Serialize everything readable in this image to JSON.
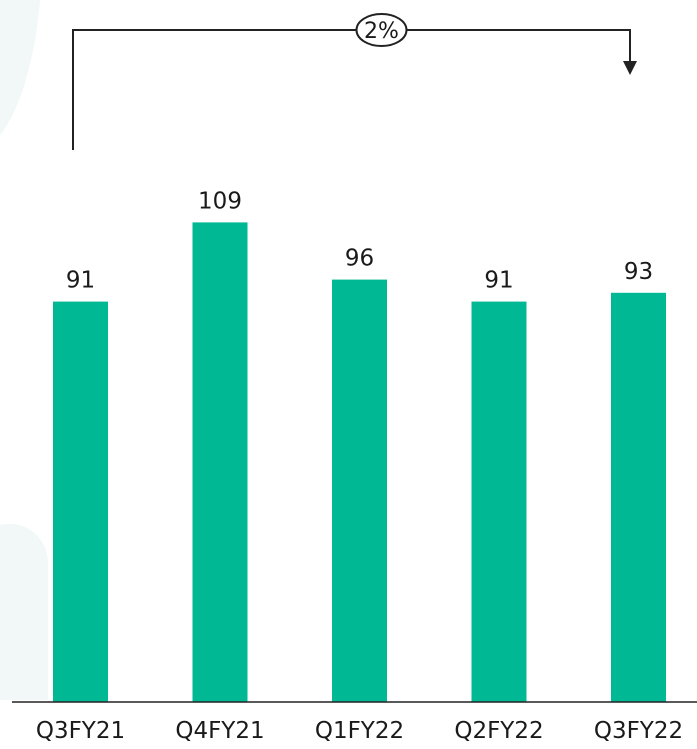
{
  "colors": {
    "bar": "#00b894",
    "axis": "#222222",
    "text": "#1a1a1a",
    "background_shape": "#f2f8f7"
  },
  "chart_data": {
    "type": "bar",
    "categories": [
      "Q3FY21",
      "Q4FY21",
      "Q1FY22",
      "Q2FY22",
      "Q3FY22"
    ],
    "values": [
      91,
      109,
      96,
      91,
      93
    ],
    "data_labels": [
      "91",
      "109",
      "96",
      "91",
      "93"
    ],
    "title": "",
    "xlabel": "",
    "ylabel": "",
    "grid": false,
    "legend": "none",
    "annotation": {
      "text": "2%",
      "from_category": "Q3FY21",
      "to_category": "Q3FY22",
      "style": "bracket-arrow"
    }
  }
}
